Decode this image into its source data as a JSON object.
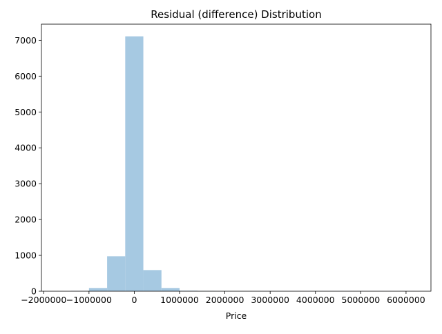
{
  "chart_data": {
    "type": "bar",
    "title": "Residual (difference) Distribution",
    "xlabel": "Price",
    "ylabel": "",
    "xlim": [
      -2050000,
      6550000
    ],
    "ylim": [
      0,
      7450
    ],
    "xticks": [
      -2000000,
      -1000000,
      0,
      1000000,
      2000000,
      3000000,
      4000000,
      5000000,
      6000000
    ],
    "xtick_labels": [
      "−2000000",
      "−1000000",
      "0",
      "1000000",
      "2000000",
      "3000000",
      "4000000",
      "5000000",
      "6000000"
    ],
    "yticks": [
      0,
      1000,
      2000,
      3000,
      4000,
      5000,
      6000,
      7000
    ],
    "ytick_labels": [
      "0",
      "1000",
      "2000",
      "3000",
      "4000",
      "5000",
      "6000",
      "7000"
    ],
    "bin_width": 400000,
    "bins": [
      {
        "start": -1400000,
        "end": -1000000,
        "count": 10
      },
      {
        "start": -1000000,
        "end": -600000,
        "count": 90
      },
      {
        "start": -600000,
        "end": -200000,
        "count": 975
      },
      {
        "start": -200000,
        "end": 200000,
        "count": 7110
      },
      {
        "start": 200000,
        "end": 600000,
        "count": 590
      },
      {
        "start": 600000,
        "end": 1000000,
        "count": 90
      },
      {
        "start": 1000000,
        "end": 1400000,
        "count": 15
      },
      {
        "start": 1400000,
        "end": 1800000,
        "count": 8
      },
      {
        "start": 1800000,
        "end": 2200000,
        "count": 3
      },
      {
        "start": 2200000,
        "end": 2600000,
        "count": 2
      },
      {
        "start": 2600000,
        "end": 3000000,
        "count": 1
      },
      {
        "start": 3000000,
        "end": 3400000,
        "count": 1
      },
      {
        "start": 3400000,
        "end": 3800000,
        "count": 1
      },
      {
        "start": 3800000,
        "end": 4200000,
        "count": 1
      },
      {
        "start": 4200000,
        "end": 4600000,
        "count": 1
      },
      {
        "start": 4600000,
        "end": 5000000,
        "count": 1
      },
      {
        "start": 5000000,
        "end": 5400000,
        "count": 1
      },
      {
        "start": 5400000,
        "end": 5800000,
        "count": 1
      },
      {
        "start": 5800000,
        "end": 6200000,
        "count": 1
      }
    ],
    "bar_color": "#a6c9e2",
    "grid": false,
    "legend": "none"
  }
}
